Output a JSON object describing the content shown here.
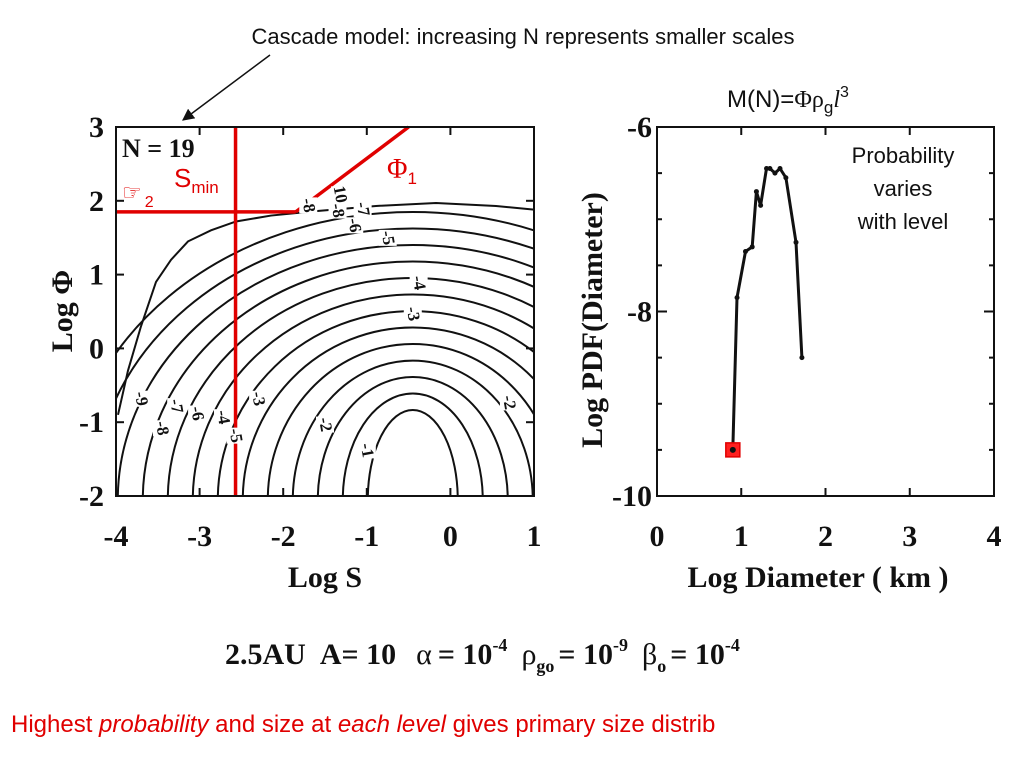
{
  "header_text": "Cascade model: increasing N represents smaller scales",
  "formula": {
    "prefix": "M(N)=",
    "phi": "Φ",
    "rho": "ρ",
    "rho_sub": "g",
    "ell": "l",
    "ell_sup": "3"
  },
  "note_lines": [
    "Probability",
    "varies",
    "with level"
  ],
  "params": {
    "distance": "2.5AU",
    "a_label": "A= 10",
    "alpha_sym": "α",
    "alpha_eq": "= 10",
    "alpha_exp": "-4",
    "rho_sym": "ρ",
    "rho_sub": "go",
    "rho_eq": "= 10",
    "rho_exp": "-9",
    "beta_sym": "β",
    "beta_sub": "o",
    "beta_eq": "= 10",
    "beta_exp": "-4"
  },
  "footer": {
    "p1": "Highest ",
    "p2": "probability",
    "p3": " and size at ",
    "p4": "each level",
    "p5": " gives primary size distrib"
  },
  "colors": {
    "accent": "#e00000",
    "ink": "#111111"
  },
  "chart_data": [
    {
      "type": "contour",
      "panel_label": "N = 19",
      "xlabel": "Log S",
      "ylabel": "Log Φ",
      "xlim": [
        -4,
        1
      ],
      "ylim": [
        -2,
        3
      ],
      "xticks": [
        -4,
        -3,
        -2,
        -1,
        0,
        1
      ],
      "yticks": [
        -2,
        -1,
        0,
        1,
        2,
        3
      ],
      "contour_labels": [
        {
          "text": "-1",
          "x": -1.0,
          "y": -1.45
        },
        {
          "text": "-2",
          "x": -1.5,
          "y": -1.1
        },
        {
          "text": "-2",
          "x": 0.7,
          "y": -0.8
        },
        {
          "text": "-3",
          "x": -2.3,
          "y": -0.75
        },
        {
          "text": "-3",
          "x": -0.45,
          "y": 0.4
        },
        {
          "text": "-4",
          "x": -2.72,
          "y": -1.0
        },
        {
          "text": "-4",
          "x": -0.38,
          "y": 0.82
        },
        {
          "text": "-5",
          "x": -2.57,
          "y": -1.25
        },
        {
          "text": "-5",
          "x": -0.75,
          "y": 1.43
        },
        {
          "text": "-6",
          "x": -3.03,
          "y": -0.95
        },
        {
          "text": "-6",
          "x": -1.15,
          "y": 1.6
        },
        {
          "text": "-7",
          "x": -3.28,
          "y": -0.85
        },
        {
          "text": "-7",
          "x": -1.05,
          "y": 1.82
        },
        {
          "text": "-8",
          "x": -3.45,
          "y": -1.15
        },
        {
          "text": "-8",
          "x": -1.7,
          "y": 1.87
        },
        {
          "text": "-8",
          "x": -1.35,
          "y": 1.8
        },
        {
          "text": "-9",
          "x": -3.7,
          "y": -0.75
        },
        {
          "text": "10",
          "x": -1.32,
          "y": 2.02
        }
      ],
      "annotations": [
        {
          "type": "vertical_line",
          "label": "S",
          "label_sub": "min",
          "x": -2.57
        },
        {
          "type": "horizontal_line",
          "label_symbol": "☞",
          "label_sub": "2",
          "y": 1.85
        },
        {
          "type": "diagonal_line",
          "label": "Φ",
          "label_sub": "1",
          "points": [
            [
              -1.85,
              1.85
            ],
            [
              -0.5,
              3.0
            ]
          ]
        }
      ]
    },
    {
      "type": "line",
      "xlabel": "Log Diameter ( km )",
      "ylabel": "Log PDF(Diameter)",
      "xlim": [
        0,
        4
      ],
      "ylim": [
        -10,
        -6
      ],
      "xticks": [
        0,
        1,
        2,
        3,
        4
      ],
      "yticks": [
        -6,
        -8,
        -10
      ],
      "x": [
        0.9,
        0.95,
        1.05,
        1.13,
        1.18,
        1.23,
        1.3,
        1.34,
        1.4,
        1.46,
        1.53,
        1.65,
        1.72
      ],
      "y": [
        -9.5,
        -7.85,
        -7.35,
        -7.3,
        -6.7,
        -6.85,
        -6.45,
        -6.45,
        -6.5,
        -6.45,
        -6.55,
        -7.25,
        -8.5
      ],
      "highlight": {
        "x": 0.9,
        "y": -9.5
      }
    }
  ]
}
